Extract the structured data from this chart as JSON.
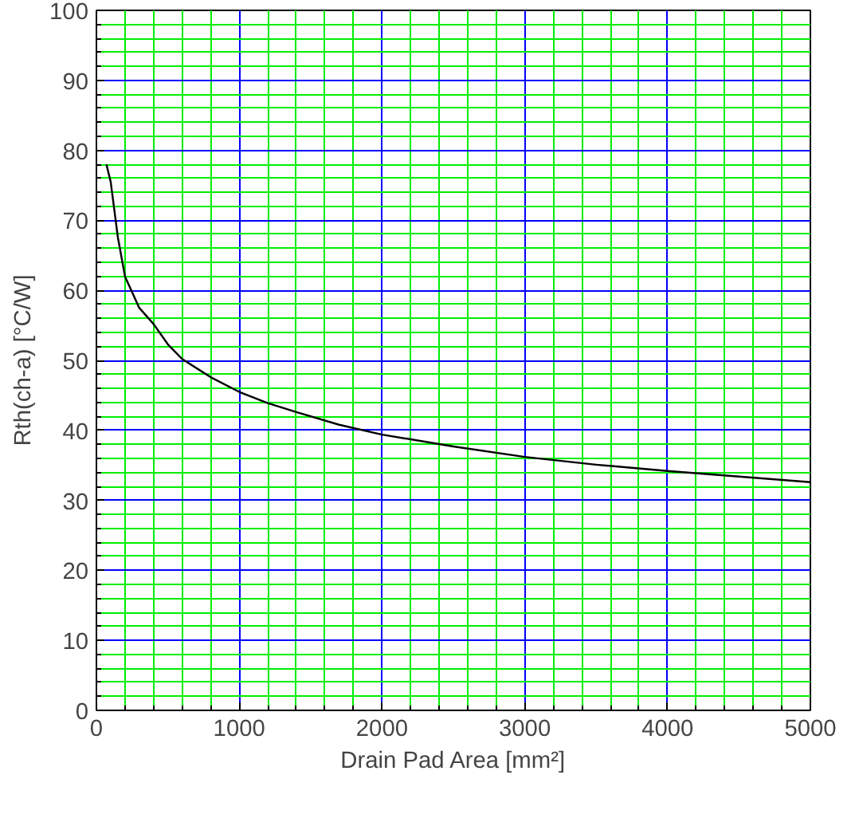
{
  "chart_data": {
    "type": "line",
    "xlabel": "Drain Pad Area [mm²]",
    "ylabel": "Rth(ch-a) [°C/W]",
    "series": [
      {
        "color": "#000000",
        "x": [
          70,
          100,
          150,
          200,
          300,
          400,
          500,
          600,
          800,
          1000,
          1200,
          1400,
          1700,
          2000,
          2500,
          3000,
          3500,
          4000,
          4500,
          5000
        ],
        "values": [
          78,
          75.5,
          67.6,
          62,
          57.5,
          55.2,
          52.3,
          50.2,
          47.6,
          45.5,
          43.9,
          42.6,
          40.8,
          39.4,
          37.7,
          36.2,
          35.1,
          34.2,
          33.4,
          32.6
        ]
      }
    ],
    "xlim": [
      0,
      5000
    ],
    "ylim": [
      0,
      100
    ],
    "xticks": [
      0,
      {
        "value": 200,
        "label": null
      },
      {
        "value": 400,
        "label": null
      },
      {
        "value": 600,
        "label": null
      },
      {
        "value": 800,
        "label": null
      },
      1000,
      {
        "value": 1200,
        "label": null
      },
      {
        "value": 1400,
        "label": null
      },
      {
        "value": 1600,
        "label": null
      },
      {
        "value": 1800,
        "label": null
      },
      2000,
      {
        "value": 2200,
        "label": null
      },
      {
        "value": 2400,
        "label": null
      },
      {
        "value": 2600,
        "label": null
      },
      {
        "value": 2800,
        "label": null
      },
      3000,
      {
        "value": 3200,
        "label": null
      },
      {
        "value": 3400,
        "label": null
      },
      {
        "value": 3600,
        "label": null
      },
      {
        "value": 3800,
        "label": null
      },
      4000,
      {
        "value": 4200,
        "label": null
      },
      {
        "value": 4400,
        "label": null
      },
      {
        "value": 4600,
        "label": null
      },
      {
        "value": 4800,
        "label": null
      },
      5000
    ],
    "yticks": [
      0,
      {
        "value": 2,
        "label": null
      },
      {
        "value": 4,
        "label": null
      },
      {
        "value": 6,
        "label": null
      },
      {
        "value": 8,
        "label": null
      },
      10,
      {
        "value": 12,
        "label": null
      },
      {
        "value": 14,
        "label": null
      },
      {
        "value": 16,
        "label": null
      },
      {
        "value": 18,
        "label": null
      },
      20,
      {
        "value": 22,
        "label": null
      },
      {
        "value": 24,
        "label": null
      },
      {
        "value": 26,
        "label": null
      },
      {
        "value": 28,
        "label": null
      },
      30,
      {
        "value": 32,
        "label": null
      },
      {
        "value": 34,
        "label": null
      },
      {
        "value": 36,
        "label": null
      },
      {
        "value": 38,
        "label": null
      },
      40,
      {
        "value": 42,
        "label": null
      },
      {
        "value": 44,
        "label": null
      },
      {
        "value": 46,
        "label": null
      },
      {
        "value": 48,
        "label": null
      },
      50,
      {
        "value": 52,
        "label": null
      },
      {
        "value": 54,
        "label": null
      },
      {
        "value": 56,
        "label": null
      },
      {
        "value": 58,
        "label": null
      },
      60,
      {
        "value": 62,
        "label": null
      },
      {
        "value": 64,
        "label": null
      },
      {
        "value": 66,
        "label": null
      },
      {
        "value": 68,
        "label": null
      },
      70,
      {
        "value": 72,
        "label": null
      },
      {
        "value": 74,
        "label": null
      },
      {
        "value": 76,
        "label": null
      },
      {
        "value": 78,
        "label": null
      },
      80,
      {
        "value": 82,
        "label": null
      },
      {
        "value": 84,
        "label": null
      },
      {
        "value": 86,
        "label": null
      },
      {
        "value": 88,
        "label": null
      },
      90,
      {
        "value": 92,
        "label": null
      },
      {
        "value": 94,
        "label": null
      },
      {
        "value": 96,
        "label": null
      },
      {
        "value": 98,
        "label": null
      },
      100
    ],
    "grid": true,
    "line_style": "solid",
    "marker": "none"
  }
}
